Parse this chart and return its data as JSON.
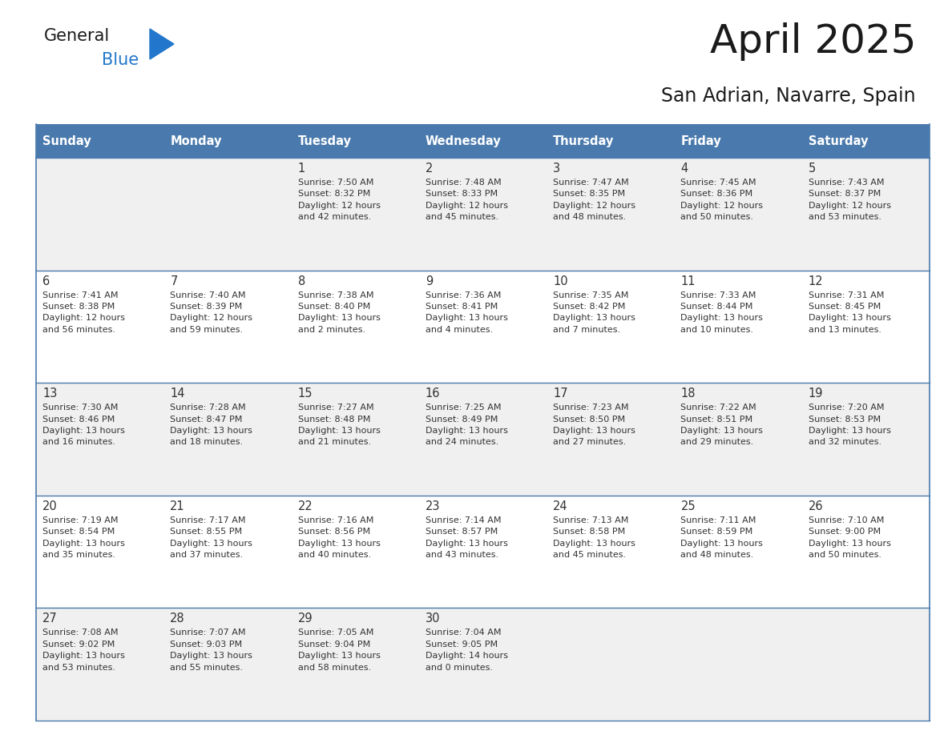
{
  "title": "April 2025",
  "subtitle": "San Adrian, Navarre, Spain",
  "days_of_week": [
    "Sunday",
    "Monday",
    "Tuesday",
    "Wednesday",
    "Thursday",
    "Friday",
    "Saturday"
  ],
  "header_bg": "#4a7aad",
  "header_text": "#ffffff",
  "row_bg_odd": "#f0f0f0",
  "row_bg_even": "#ffffff",
  "day_num_color": "#333333",
  "info_color": "#333333",
  "line_color": "#4a7aad",
  "general_color": "#1a1a1a",
  "blue_color": "#2277cc",
  "triangle_color": "#2277cc",
  "calendar": [
    [
      {
        "day": "",
        "info": ""
      },
      {
        "day": "",
        "info": ""
      },
      {
        "day": "1",
        "info": "Sunrise: 7:50 AM\nSunset: 8:32 PM\nDaylight: 12 hours\nand 42 minutes."
      },
      {
        "day": "2",
        "info": "Sunrise: 7:48 AM\nSunset: 8:33 PM\nDaylight: 12 hours\nand 45 minutes."
      },
      {
        "day": "3",
        "info": "Sunrise: 7:47 AM\nSunset: 8:35 PM\nDaylight: 12 hours\nand 48 minutes."
      },
      {
        "day": "4",
        "info": "Sunrise: 7:45 AM\nSunset: 8:36 PM\nDaylight: 12 hours\nand 50 minutes."
      },
      {
        "day": "5",
        "info": "Sunrise: 7:43 AM\nSunset: 8:37 PM\nDaylight: 12 hours\nand 53 minutes."
      }
    ],
    [
      {
        "day": "6",
        "info": "Sunrise: 7:41 AM\nSunset: 8:38 PM\nDaylight: 12 hours\nand 56 minutes."
      },
      {
        "day": "7",
        "info": "Sunrise: 7:40 AM\nSunset: 8:39 PM\nDaylight: 12 hours\nand 59 minutes."
      },
      {
        "day": "8",
        "info": "Sunrise: 7:38 AM\nSunset: 8:40 PM\nDaylight: 13 hours\nand 2 minutes."
      },
      {
        "day": "9",
        "info": "Sunrise: 7:36 AM\nSunset: 8:41 PM\nDaylight: 13 hours\nand 4 minutes."
      },
      {
        "day": "10",
        "info": "Sunrise: 7:35 AM\nSunset: 8:42 PM\nDaylight: 13 hours\nand 7 minutes."
      },
      {
        "day": "11",
        "info": "Sunrise: 7:33 AM\nSunset: 8:44 PM\nDaylight: 13 hours\nand 10 minutes."
      },
      {
        "day": "12",
        "info": "Sunrise: 7:31 AM\nSunset: 8:45 PM\nDaylight: 13 hours\nand 13 minutes."
      }
    ],
    [
      {
        "day": "13",
        "info": "Sunrise: 7:30 AM\nSunset: 8:46 PM\nDaylight: 13 hours\nand 16 minutes."
      },
      {
        "day": "14",
        "info": "Sunrise: 7:28 AM\nSunset: 8:47 PM\nDaylight: 13 hours\nand 18 minutes."
      },
      {
        "day": "15",
        "info": "Sunrise: 7:27 AM\nSunset: 8:48 PM\nDaylight: 13 hours\nand 21 minutes."
      },
      {
        "day": "16",
        "info": "Sunrise: 7:25 AM\nSunset: 8:49 PM\nDaylight: 13 hours\nand 24 minutes."
      },
      {
        "day": "17",
        "info": "Sunrise: 7:23 AM\nSunset: 8:50 PM\nDaylight: 13 hours\nand 27 minutes."
      },
      {
        "day": "18",
        "info": "Sunrise: 7:22 AM\nSunset: 8:51 PM\nDaylight: 13 hours\nand 29 minutes."
      },
      {
        "day": "19",
        "info": "Sunrise: 7:20 AM\nSunset: 8:53 PM\nDaylight: 13 hours\nand 32 minutes."
      }
    ],
    [
      {
        "day": "20",
        "info": "Sunrise: 7:19 AM\nSunset: 8:54 PM\nDaylight: 13 hours\nand 35 minutes."
      },
      {
        "day": "21",
        "info": "Sunrise: 7:17 AM\nSunset: 8:55 PM\nDaylight: 13 hours\nand 37 minutes."
      },
      {
        "day": "22",
        "info": "Sunrise: 7:16 AM\nSunset: 8:56 PM\nDaylight: 13 hours\nand 40 minutes."
      },
      {
        "day": "23",
        "info": "Sunrise: 7:14 AM\nSunset: 8:57 PM\nDaylight: 13 hours\nand 43 minutes."
      },
      {
        "day": "24",
        "info": "Sunrise: 7:13 AM\nSunset: 8:58 PM\nDaylight: 13 hours\nand 45 minutes."
      },
      {
        "day": "25",
        "info": "Sunrise: 7:11 AM\nSunset: 8:59 PM\nDaylight: 13 hours\nand 48 minutes."
      },
      {
        "day": "26",
        "info": "Sunrise: 7:10 AM\nSunset: 9:00 PM\nDaylight: 13 hours\nand 50 minutes."
      }
    ],
    [
      {
        "day": "27",
        "info": "Sunrise: 7:08 AM\nSunset: 9:02 PM\nDaylight: 13 hours\nand 53 minutes."
      },
      {
        "day": "28",
        "info": "Sunrise: 7:07 AM\nSunset: 9:03 PM\nDaylight: 13 hours\nand 55 minutes."
      },
      {
        "day": "29",
        "info": "Sunrise: 7:05 AM\nSunset: 9:04 PM\nDaylight: 13 hours\nand 58 minutes."
      },
      {
        "day": "30",
        "info": "Sunrise: 7:04 AM\nSunset: 9:05 PM\nDaylight: 14 hours\nand 0 minutes."
      },
      {
        "day": "",
        "info": ""
      },
      {
        "day": "",
        "info": ""
      },
      {
        "day": "",
        "info": ""
      }
    ]
  ],
  "figsize": [
    11.88,
    9.18
  ],
  "dpi": 100
}
